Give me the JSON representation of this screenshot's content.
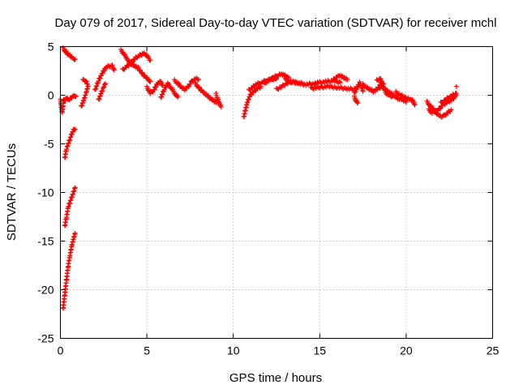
{
  "chart_data": {
    "type": "scatter",
    "title": "Day 079 of 2017, Sidereal Day-to-day VTEC variation (SDTVAR) for receiver mchl",
    "xlabel": "GPS time / hours",
    "ylabel": "SDTVAR / TECUs",
    "xlim": [
      0,
      25
    ],
    "ylim": [
      -25,
      5
    ],
    "xticks": [
      "0",
      "5",
      "10",
      "15",
      "20",
      "25"
    ],
    "yticks": [
      "-25",
      "-20",
      "-15",
      "-10",
      "-5",
      "0",
      "5"
    ],
    "grid": true,
    "marker": "plus",
    "color": "#ff0000",
    "series": [
      {
        "name": "SDTVAR",
        "segments": [
          [
            [
              0.0,
              -0.5
            ],
            [
              0.05,
              -1.2
            ],
            [
              0.1,
              -1.8
            ],
            [
              0.15,
              -1.0
            ],
            [
              0.2,
              -0.4
            ]
          ],
          [
            [
              0.15,
              4.8
            ],
            [
              0.3,
              4.5
            ],
            [
              0.45,
              4.2
            ],
            [
              0.6,
              4.0
            ],
            [
              0.75,
              3.8
            ],
            [
              0.85,
              3.7
            ]
          ],
          [
            [
              0.2,
              -0.6
            ],
            [
              0.35,
              -0.3
            ],
            [
              0.5,
              -0.5
            ],
            [
              0.65,
              -0.2
            ],
            [
              0.8,
              0.0
            ],
            [
              0.9,
              -0.1
            ]
          ],
          [
            [
              0.25,
              -6.5
            ],
            [
              0.35,
              -5.5
            ],
            [
              0.45,
              -5.0
            ],
            [
              0.55,
              -4.5
            ],
            [
              0.65,
              -4.0
            ],
            [
              0.75,
              -3.6
            ],
            [
              0.85,
              -3.5
            ]
          ],
          [
            [
              0.25,
              -13.5
            ],
            [
              0.35,
              -12.5
            ],
            [
              0.45,
              -11.5
            ],
            [
              0.55,
              -11.0
            ],
            [
              0.65,
              -10.5
            ],
            [
              0.75,
              -10.0
            ],
            [
              0.85,
              -9.5
            ]
          ],
          [
            [
              0.15,
              -22.0
            ],
            [
              0.25,
              -20.5
            ],
            [
              0.35,
              -19.0
            ],
            [
              0.45,
              -17.5
            ],
            [
              0.55,
              -16.5
            ],
            [
              0.65,
              -15.5
            ],
            [
              0.75,
              -14.8
            ],
            [
              0.85,
              -14.2
            ]
          ],
          [
            [
              1.2,
              -1.2
            ],
            [
              1.35,
              -0.5
            ],
            [
              1.5,
              0.3
            ],
            [
              1.6,
              1.0
            ],
            [
              1.45,
              1.5
            ],
            [
              1.3,
              1.6
            ]
          ],
          [
            [
              2.0,
              0.5
            ],
            [
              2.2,
              1.5
            ],
            [
              2.4,
              2.2
            ],
            [
              2.6,
              2.8
            ],
            [
              2.8,
              3.0
            ],
            [
              3.0,
              3.0
            ],
            [
              3.1,
              2.6
            ]
          ],
          [
            [
              2.2,
              -0.5
            ],
            [
              2.35,
              0.2
            ],
            [
              2.5,
              0.8
            ],
            [
              2.6,
              1.2
            ]
          ],
          [
            [
              3.5,
              4.6
            ],
            [
              3.7,
              4.2
            ],
            [
              3.9,
              3.6
            ],
            [
              4.1,
              3.2
            ],
            [
              4.3,
              3.0
            ],
            [
              4.5,
              2.8
            ],
            [
              4.7,
              2.3
            ],
            [
              4.9,
              1.9
            ],
            [
              5.1,
              1.6
            ],
            [
              5.2,
              1.4
            ]
          ],
          [
            [
              3.6,
              2.6
            ],
            [
              3.8,
              2.9
            ],
            [
              4.0,
              3.2
            ],
            [
              4.2,
              3.6
            ],
            [
              4.4,
              3.9
            ],
            [
              4.6,
              4.1
            ],
            [
              4.8,
              4.3
            ],
            [
              5.0,
              4.1
            ],
            [
              5.2,
              3.6
            ]
          ],
          [
            [
              5.0,
              0.8
            ],
            [
              5.2,
              0.2
            ],
            [
              5.4,
              0.5
            ],
            [
              5.6,
              1.2
            ],
            [
              5.8,
              1.4
            ],
            [
              5.9,
              1.0
            ]
          ],
          [
            [
              5.8,
              -0.3
            ],
            [
              6.0,
              0.6
            ],
            [
              6.2,
              1.2
            ],
            [
              6.4,
              0.8
            ],
            [
              6.6,
              0.2
            ],
            [
              6.8,
              -0.2
            ]
          ],
          [
            [
              6.6,
              1.5
            ],
            [
              6.8,
              1.2
            ],
            [
              7.0,
              0.8
            ],
            [
              7.2,
              0.6
            ],
            [
              7.4,
              0.9
            ],
            [
              7.6,
              1.4
            ],
            [
              7.8,
              1.7
            ],
            [
              8.0,
              1.6
            ]
          ],
          [
            [
              7.8,
              1.2
            ],
            [
              8.0,
              0.8
            ],
            [
              8.2,
              0.4
            ],
            [
              8.4,
              0.1
            ],
            [
              8.6,
              -0.2
            ],
            [
              8.8,
              -0.5
            ],
            [
              9.0,
              -0.7
            ],
            [
              9.2,
              -0.8
            ]
          ],
          [
            [
              9.0,
              0.1
            ],
            [
              9.1,
              -0.4
            ],
            [
              9.2,
              -0.9
            ],
            [
              9.3,
              -1.2
            ]
          ],
          [
            [
              10.6,
              -2.3
            ],
            [
              10.7,
              -1.5
            ],
            [
              10.8,
              -0.8
            ],
            [
              10.9,
              -0.3
            ],
            [
              11.0,
              0.1
            ],
            [
              11.2,
              0.4
            ],
            [
              11.4,
              0.7
            ],
            [
              11.6,
              0.9
            ]
          ],
          [
            [
              10.9,
              0.5
            ],
            [
              11.1,
              0.8
            ],
            [
              11.3,
              1.1
            ],
            [
              11.6,
              1.3
            ],
            [
              11.9,
              1.5
            ],
            [
              12.2,
              1.6
            ],
            [
              12.5,
              1.7
            ]
          ],
          [
            [
              11.8,
              1.2
            ],
            [
              12.0,
              1.5
            ],
            [
              12.3,
              1.8
            ],
            [
              12.6,
              2.1
            ],
            [
              12.8,
              2.2
            ],
            [
              13.0,
              2.0
            ],
            [
              13.2,
              1.8
            ]
          ],
          [
            [
              12.5,
              0.6
            ],
            [
              12.8,
              0.9
            ],
            [
              13.1,
              1.2
            ],
            [
              13.4,
              1.4
            ],
            [
              13.7,
              1.3
            ],
            [
              14.0,
              1.2
            ]
          ],
          [
            [
              13.0,
              1.6
            ],
            [
              13.4,
              1.4
            ],
            [
              13.8,
              1.2
            ],
            [
              14.2,
              1.1
            ],
            [
              14.6,
              1.2
            ],
            [
              15.0,
              1.3
            ],
            [
              15.4,
              1.4
            ],
            [
              15.8,
              1.5
            ],
            [
              16.2,
              1.3
            ]
          ],
          [
            [
              14.5,
              0.7
            ],
            [
              15.0,
              0.8
            ],
            [
              15.5,
              0.9
            ],
            [
              16.0,
              0.8
            ],
            [
              16.5,
              0.7
            ],
            [
              17.0,
              0.6
            ],
            [
              17.2,
              0.8
            ]
          ],
          [
            [
              15.8,
              1.6
            ],
            [
              16.0,
              1.9
            ],
            [
              16.2,
              2.0
            ],
            [
              16.4,
              1.8
            ],
            [
              16.6,
              1.6
            ]
          ],
          [
            [
              17.0,
              0.2
            ],
            [
              17.2,
              0.9
            ],
            [
              17.3,
              1.3
            ],
            [
              17.4,
              1.0
            ],
            [
              17.5,
              0.4
            ]
          ],
          [
            [
              17.0,
              -0.2
            ],
            [
              17.1,
              -0.6
            ],
            [
              17.2,
              -0.8
            ]
          ],
          [
            [
              17.5,
              1.1
            ],
            [
              17.7,
              0.8
            ],
            [
              17.9,
              0.6
            ],
            [
              18.1,
              0.4
            ],
            [
              18.3,
              0.6
            ],
            [
              18.5,
              1.0
            ],
            [
              18.7,
              1.2
            ]
          ],
          [
            [
              18.3,
              1.5
            ],
            [
              18.5,
              1.7
            ],
            [
              18.6,
              1.3
            ],
            [
              18.7,
              0.8
            ],
            [
              18.8,
              0.3
            ],
            [
              19.0,
              0.0
            ],
            [
              19.2,
              -0.1
            ]
          ],
          [
            [
              18.4,
              0.7
            ],
            [
              18.6,
              0.9
            ],
            [
              18.8,
              0.6
            ],
            [
              19.0,
              0.3
            ],
            [
              19.2,
              0.1
            ],
            [
              19.4,
              -0.2
            ],
            [
              19.6,
              -0.4
            ],
            [
              19.8,
              -0.5
            ],
            [
              20.0,
              -0.7
            ]
          ],
          [
            [
              19.4,
              0.3
            ],
            [
              19.7,
              0.0
            ],
            [
              20.0,
              -0.3
            ],
            [
              20.2,
              -0.4
            ],
            [
              20.4,
              -0.6
            ],
            [
              20.5,
              -1.0
            ]
          ],
          [
            [
              21.2,
              -0.7
            ],
            [
              21.4,
              -1.1
            ],
            [
              21.6,
              -1.5
            ],
            [
              21.8,
              -1.9
            ],
            [
              22.0,
              -2.2
            ],
            [
              22.2,
              -2.1
            ],
            [
              22.4,
              -1.8
            ],
            [
              22.6,
              -1.5
            ]
          ],
          [
            [
              21.3,
              -1.5
            ],
            [
              21.5,
              -1.8
            ],
            [
              21.8,
              -1.6
            ],
            [
              22.0,
              -1.2
            ],
            [
              22.2,
              -0.9
            ],
            [
              22.4,
              -0.7
            ],
            [
              22.6,
              -0.5
            ],
            [
              22.8,
              -0.2
            ],
            [
              22.9,
              0.0
            ]
          ],
          [
            [
              22.0,
              -0.8
            ],
            [
              22.3,
              -0.4
            ],
            [
              22.6,
              -0.1
            ],
            [
              22.8,
              0.1
            ],
            [
              22.9,
              0.2
            ]
          ],
          [
            [
              22.9,
              0.9
            ]
          ]
        ]
      }
    ]
  }
}
